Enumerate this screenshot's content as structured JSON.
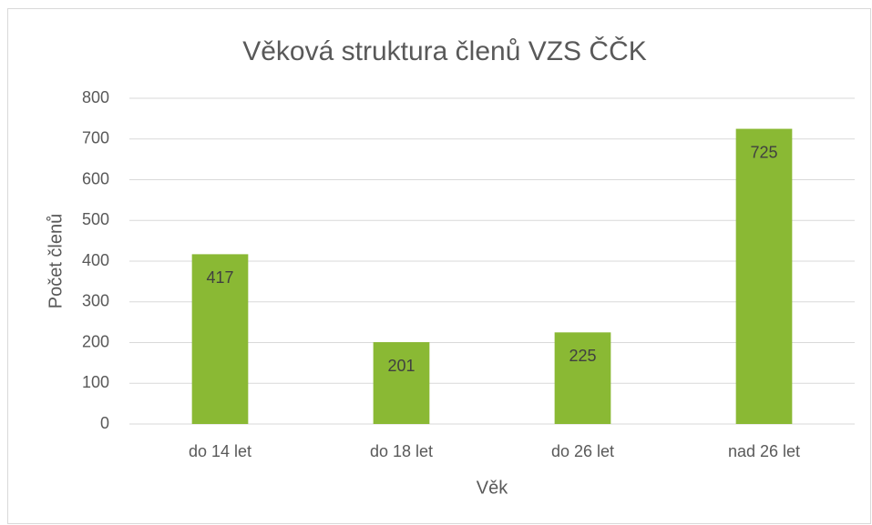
{
  "chart_data": {
    "type": "bar",
    "title": "Věková struktura členů VZS ČČK",
    "x_label": "Věk",
    "y_label": "Počet členů",
    "categories": [
      "do 14 let",
      "do 18 let",
      "do 26 let",
      "nad 26 let"
    ],
    "values": [
      417,
      201,
      225,
      725
    ],
    "color": "#8ab934",
    "ylim": [
      0,
      800
    ],
    "yticks": [
      0,
      100,
      200,
      300,
      400,
      500,
      600,
      700,
      800
    ],
    "grid": true,
    "data_labels": true
  }
}
